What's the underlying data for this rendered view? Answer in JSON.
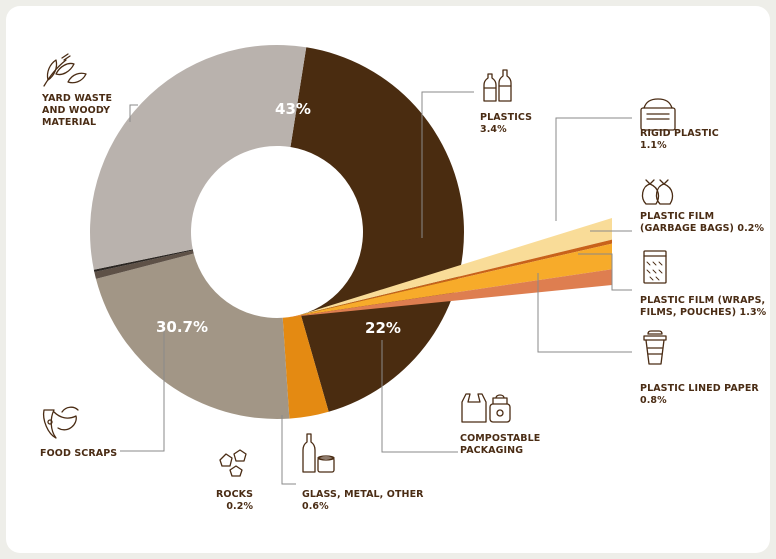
{
  "chart_data": {
    "type": "pie",
    "donut": true,
    "slices": [
      {
        "label": "YARD WASTE\nAND WOODY\nMATERIAL",
        "value": 43,
        "value_text": "43%",
        "color": "#4a2c10",
        "label_in_ring": true
      },
      {
        "label": "PLASTICS",
        "value": 3.4,
        "value_text": "3.4%",
        "color": "#e48a12",
        "label_in_ring": false,
        "sub": [
          {
            "label": "RIGID PLASTIC",
            "value": 1.1,
            "value_text": "1.1%",
            "color": "#f9dc98"
          },
          {
            "label": "PLASTIC FILM\n(GARBAGE BAGS) 0.2%",
            "value": 0.2,
            "value_text": "0.2%",
            "color": "#c8621a"
          },
          {
            "label": "PLASTIC FILM (WRAPS,\nFILMS, POUCHES) 1.3%",
            "value": 1.3,
            "value_text": "1.3%",
            "color": "#f7ab2a"
          },
          {
            "label": "PLASTIC LINED PAPER",
            "value": 0.8,
            "value_text": "0.8%",
            "color": "#de7e50"
          }
        ]
      },
      {
        "label": "COMPOSTABLE\nPACKAGING",
        "value": 22,
        "value_text": "22%",
        "color": "#a29686",
        "label_in_ring": true
      },
      {
        "label": "GLASS, METAL, OTHER",
        "value": 0.6,
        "value_text": "0.6%",
        "color": "#5e5147",
        "label_in_ring": false
      },
      {
        "label": "ROCKS",
        "value": 0.2,
        "value_text": "0.2%",
        "color": "#2b2622",
        "label_in_ring": false
      },
      {
        "label": "FOOD SCRAPS",
        "value": 30.7,
        "value_text": "30.7%",
        "color": "#b9b2ad",
        "label_in_ring": true
      }
    ],
    "legend": "none"
  },
  "labels": {
    "yard": "YARD WASTE\nAND WOODY\nMATERIAL",
    "plastics": "PLASTICS",
    "plastics_value": "3.4%",
    "rigid": "RIGID PLASTIC",
    "rigid_value": "1.1%",
    "film_bags": "PLASTIC FILM\n(GARBAGE BAGS) 0.2%",
    "film_wraps": "PLASTIC FILM (WRAPS,\nFILMS, POUCHES) 1.3%",
    "lined": "PLASTIC LINED PAPER",
    "lined_value": "0.8%",
    "compostable": "COMPOSTABLE\nPACKAGING",
    "glass": "GLASS, METAL, OTHER",
    "glass_value": "0.6%",
    "rocks": "ROCKS",
    "rocks_value": "0.2%",
    "food": "FOOD SCRAPS",
    "ring_yard": "43%",
    "ring_compost": "22%",
    "ring_food": "30.7%"
  },
  "icons": {
    "yard": "leaves-icon",
    "plastics": "bottles-icon",
    "rigid": "container-icon",
    "film_bags": "garbage-bags-icon",
    "film_wraps": "pouch-icon",
    "lined": "cup-icon",
    "compostable": "packaging-icon",
    "glass": "bottle-can-icon",
    "rocks": "rocks-icon",
    "food": "food-scraps-icon"
  },
  "colors": {
    "text": "#4a2c14",
    "leader": "#8a8a8a"
  }
}
